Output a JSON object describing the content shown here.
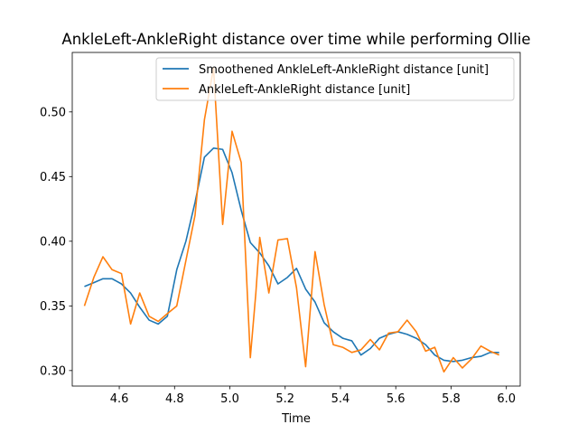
{
  "chart_data": {
    "type": "line",
    "title": "AnkleLeft-AnkleRight distance over time while performing Ollie",
    "xlabel": "Time",
    "ylabel": "",
    "xlim": [
      4.43,
      6.05
    ],
    "ylim": [
      0.288,
      0.546
    ],
    "x_ticks": [
      4.6,
      4.8,
      5.0,
      5.2,
      5.4,
      5.6,
      5.8,
      6.0
    ],
    "x_tick_labels": [
      "4.6",
      "4.8",
      "5.0",
      "5.2",
      "5.4",
      "5.6",
      "5.8",
      "6.0"
    ],
    "y_ticks": [
      0.3,
      0.35,
      0.4,
      0.45,
      0.5
    ],
    "y_tick_labels": [
      "0.30",
      "0.35",
      "0.40",
      "0.45",
      "0.50"
    ],
    "grid": false,
    "legend_position": "upper right",
    "series": [
      {
        "name": "Smoothened AnkleLeft-AnkleRight distance [unit]",
        "color": "#1f77b4",
        "x": [
          4.474,
          4.508,
          4.541,
          4.574,
          4.608,
          4.641,
          4.674,
          4.708,
          4.741,
          4.774,
          4.808,
          4.841,
          4.874,
          4.908,
          4.941,
          4.974,
          5.008,
          5.041,
          5.074,
          5.108,
          5.141,
          5.174,
          5.208,
          5.241,
          5.274,
          5.308,
          5.341,
          5.374,
          5.408,
          5.441,
          5.474,
          5.508,
          5.541,
          5.574,
          5.608,
          5.641,
          5.674,
          5.708,
          5.741,
          5.774,
          5.808,
          5.841,
          5.874,
          5.908,
          5.941,
          5.974
        ],
        "y": [
          0.365,
          0.368,
          0.371,
          0.371,
          0.367,
          0.36,
          0.349,
          0.339,
          0.336,
          0.342,
          0.378,
          0.4,
          0.43,
          0.465,
          0.472,
          0.471,
          0.453,
          0.424,
          0.399,
          0.391,
          0.381,
          0.367,
          0.372,
          0.379,
          0.363,
          0.353,
          0.337,
          0.33,
          0.325,
          0.323,
          0.312,
          0.317,
          0.325,
          0.328,
          0.33,
          0.328,
          0.325,
          0.32,
          0.312,
          0.308,
          0.307,
          0.308,
          0.31,
          0.311,
          0.314,
          0.314
        ]
      },
      {
        "name": "AnkleLeft-AnkleRight distance [unit]",
        "color": "#ff7f0e",
        "x": [
          4.474,
          4.508,
          4.541,
          4.574,
          4.608,
          4.641,
          4.674,
          4.708,
          4.741,
          4.774,
          4.808,
          4.841,
          4.874,
          4.908,
          4.941,
          4.974,
          5.008,
          5.041,
          5.074,
          5.094,
          5.108,
          5.141,
          5.174,
          5.208,
          5.241,
          5.274,
          5.308,
          5.341,
          5.374,
          5.408,
          5.441,
          5.474,
          5.508,
          5.541,
          5.574,
          5.608,
          5.641,
          5.674,
          5.708,
          5.741,
          5.774,
          5.808,
          5.841,
          5.874,
          5.908,
          5.941,
          5.974
        ],
        "y": [
          0.35,
          0.372,
          0.388,
          0.378,
          0.375,
          0.336,
          0.36,
          0.342,
          0.338,
          0.344,
          0.35,
          0.385,
          0.42,
          0.494,
          0.534,
          0.413,
          0.485,
          0.461,
          0.31,
          0.36,
          0.403,
          0.36,
          0.401,
          0.402,
          0.364,
          0.303,
          0.392,
          0.351,
          0.32,
          0.318,
          0.314,
          0.316,
          0.324,
          0.316,
          0.329,
          0.33,
          0.339,
          0.33,
          0.315,
          0.318,
          0.299,
          0.31,
          0.302,
          0.309,
          0.319,
          0.315,
          0.312
        ]
      }
    ]
  }
}
